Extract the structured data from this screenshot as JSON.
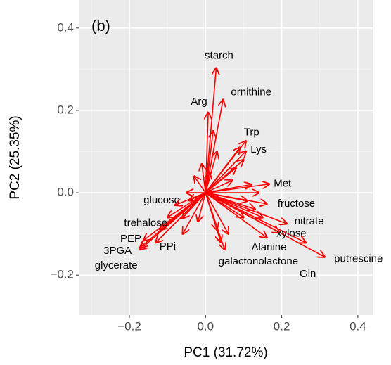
{
  "chart_data": {
    "type": "biplot",
    "panel_label": "(b)",
    "x_label": "PC1 (31.72%)",
    "y_label": "PC2 (25.35%)",
    "color": "#ff0000",
    "grid": true,
    "xlim": [
      -0.333,
      0.439
    ],
    "ylim": [
      -0.297,
      0.468
    ],
    "xticks": [
      {
        "value": -0.2,
        "label": "−0.2"
      },
      {
        "value": 0,
        "label": "0.0"
      },
      {
        "value": 0.2,
        "label": "0.2"
      },
      {
        "value": 0.4,
        "label": "0.4"
      }
    ],
    "yticks": [
      {
        "value": -0.2,
        "label": "−0.2"
      },
      {
        "value": 0,
        "label": "0.0"
      },
      {
        "value": 0.2,
        "label": "0.2"
      },
      {
        "value": 0.4,
        "label": "0.4"
      }
    ],
    "labels": [
      "starch",
      "ornithine",
      "Arg",
      "Trp",
      "Lys",
      "Met",
      "fructose",
      "nitrate",
      "xylose",
      "Alanine",
      "putrescine",
      "Gln",
      "galactonolactone",
      "glucose",
      "trehalose",
      "PEP",
      "3PGA",
      "glycerate",
      "PPi",
      null,
      null,
      null,
      null,
      null,
      null,
      null,
      null,
      null,
      null,
      null,
      null,
      null,
      null,
      null,
      null,
      null,
      null,
      null,
      null,
      null,
      null,
      null,
      null
    ],
    "x": [
      0.028,
      0.046,
      0.007,
      0.106,
      0.106,
      0.167,
      0.161,
      0.213,
      0.194,
      0.161,
      0.313,
      0.263,
      0.05,
      -0.043,
      -0.061,
      -0.163,
      -0.172,
      -0.172,
      -0.131,
      0.02,
      0.03,
      0.09,
      0.1,
      0.08,
      0.12,
      0.14,
      0.13,
      0.1,
      0.06,
      0.04,
      0.03,
      -0.01,
      -0.03,
      -0.05,
      -0.08,
      -0.1,
      -0.12,
      -0.06,
      -0.02,
      0.01,
      0.07,
      0.11,
      0.15
    ],
    "y": [
      0.303,
      0.226,
      0.195,
      0.126,
      0.101,
      0.021,
      -0.027,
      -0.075,
      -0.096,
      -0.109,
      -0.156,
      -0.121,
      -0.138,
      -0.019,
      -0.062,
      -0.116,
      -0.133,
      -0.138,
      -0.121,
      0.15,
      0.1,
      0.11,
      0.08,
      0.06,
      0.02,
      0.0,
      -0.04,
      -0.06,
      -0.1,
      -0.12,
      -0.09,
      0.07,
      0.04,
      0.0,
      -0.03,
      -0.06,
      -0.09,
      -0.1,
      -0.07,
      0.05,
      0.03,
      -0.02,
      -0.06
    ]
  }
}
